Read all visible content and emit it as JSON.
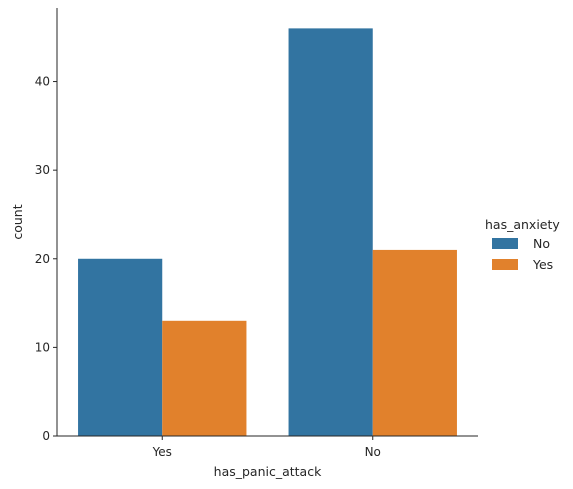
{
  "chart_data": {
    "type": "bar",
    "title": "",
    "xlabel": "has_panic_attack",
    "ylabel": "count",
    "categories": [
      "Yes",
      "No"
    ],
    "series": [
      {
        "name": "No",
        "values": [
          20,
          46
        ],
        "color": "#3274a1"
      },
      {
        "name": "Yes",
        "values": [
          13,
          21
        ],
        "color": "#e1812c"
      }
    ],
    "ylim": [
      0,
      48.3
    ],
    "yticks": [
      0,
      10,
      20,
      30,
      40
    ],
    "grid": false,
    "legend": {
      "title": "has_anxiety",
      "placement": "right-center"
    }
  }
}
